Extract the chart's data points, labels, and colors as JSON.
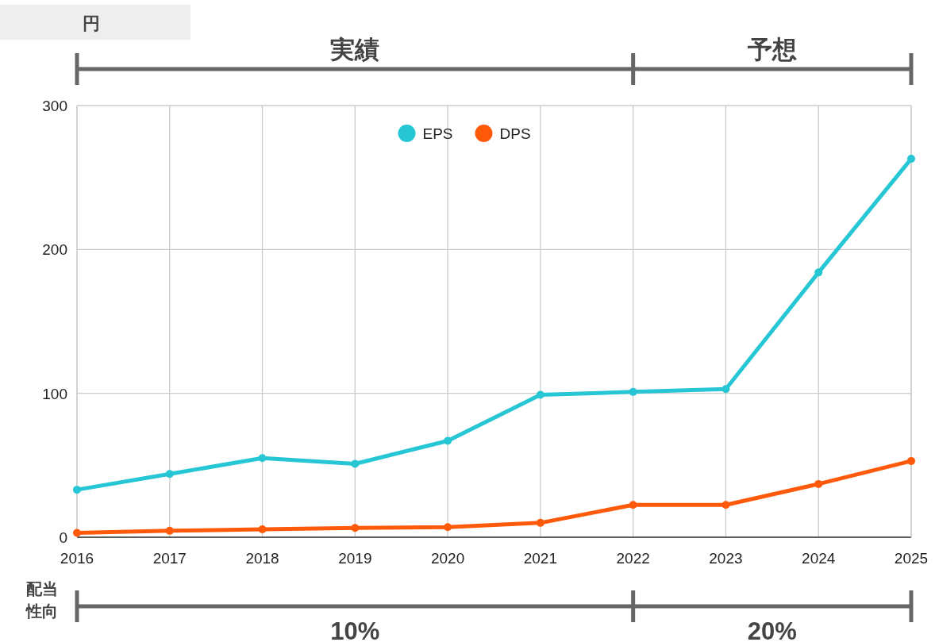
{
  "chart_data": {
    "type": "line",
    "ylabel": "円",
    "x": [
      2016,
      2017,
      2018,
      2019,
      2020,
      2021,
      2022,
      2023,
      2024,
      2025
    ],
    "xlim": [
      2016,
      2025
    ],
    "xticks": [
      2016,
      2017,
      2018,
      2019,
      2020,
      2021,
      2022,
      2023,
      2024,
      2025
    ],
    "ylim": [
      0,
      300
    ],
    "yticks": [
      0,
      100,
      200,
      300
    ],
    "grid": true,
    "legend": "top",
    "marker": "circle",
    "line_style": "solid",
    "series": [
      {
        "name": "EPS",
        "color": "#26c6d4",
        "values": [
          33,
          44,
          55,
          51,
          67,
          99,
          101,
          103,
          184,
          263
        ]
      },
      {
        "name": "DPS",
        "color": "#ff5a0a",
        "values": [
          3,
          4.5,
          5.5,
          6.5,
          7,
          10,
          22.5,
          22.5,
          37,
          53
        ]
      }
    ],
    "annotations": [
      "実績",
      "予想",
      "配当性向",
      "10%",
      "20%"
    ]
  }
}
